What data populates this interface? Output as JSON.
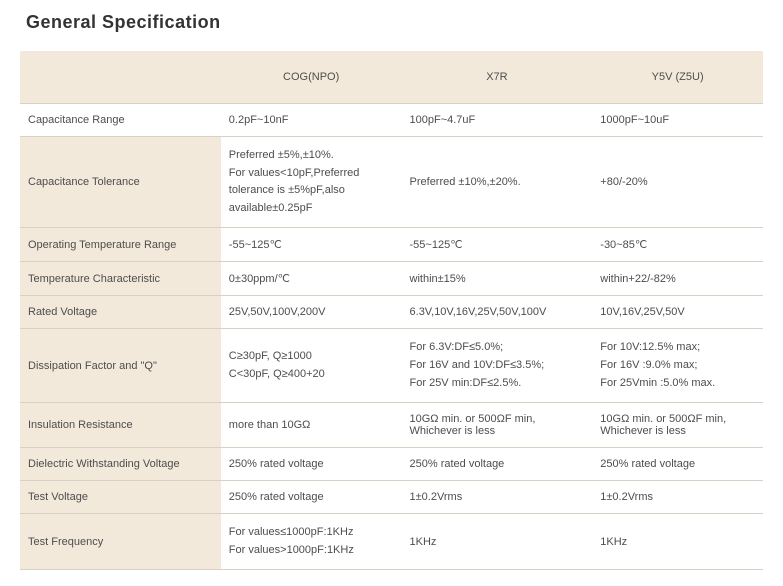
{
  "title": "General Specification",
  "columns": [
    "",
    "COG(NPO)",
    "X7R",
    "Y5V (Z5U)"
  ],
  "rows": [
    {
      "head": "Capacitance Range",
      "white": true,
      "cells": [
        "0.2pF~10nF",
        "100pF~4.7uF",
        "1000pF~10uF"
      ]
    },
    {
      "head": "Capacitance Tolerance",
      "cells": [
        "Preferred ±5%,±10%.\nFor values<10pF,Preferred tolerance is ±5%pF,also\navailable±0.25pF",
        "Preferred ±10%,±20%.",
        "+80/-20%"
      ]
    },
    {
      "head": "Operating Temperature Range",
      "cells": [
        "-55~125℃",
        "-55~125℃",
        "-30~85℃"
      ]
    },
    {
      "head": "Temperature Characteristic",
      "cells": [
        "0±30ppm/℃",
        "within±15%",
        "within+22/-82%"
      ]
    },
    {
      "head": "Rated Voltage",
      "cells": [
        "25V,50V,100V,200V",
        "6.3V,10V,16V,25V,50V,100V",
        "10V,16V,25V,50V"
      ]
    },
    {
      "head": "Dissipation Factor and \"Q\"",
      "cells": [
        "C≥30pF, Q≥1000\nC<30pF, Q≥400+20",
        "For 6.3V:DF≤5.0%;\nFor 16V and 10V:DF≤3.5%;\nFor 25V min:DF≤2.5%.",
        "For 10V:12.5% max;\nFor 16V :9.0% max;\nFor 25Vmin :5.0% max."
      ]
    },
    {
      "head": "Insulation Resistance",
      "cells": [
        "more than 10GΩ",
        "10GΩ min. or 500ΩF min, Whichever is less",
        "10GΩ min. or 500ΩF min, Whichever is less"
      ]
    },
    {
      "head": "Dielectric Withstanding Voltage",
      "cells": [
        "250% rated voltage",
        "250% rated voltage",
        "250% rated voltage"
      ]
    },
    {
      "head": "Test Voltage",
      "cells": [
        "250% rated voltage",
        "1±0.2Vrms",
        "1±0.2Vrms"
      ]
    },
    {
      "head": "Test Frequency",
      "cells": [
        "For values≤1000pF:1KHz\nFor values>1000pF:1KHz",
        "1KHz",
        "1KHz"
      ]
    }
  ],
  "colors": {
    "header_bg": "#f2e9db",
    "border": "#d8d0c4",
    "text": "#4d4d4d",
    "title": "#333333",
    "page_bg": "#ffffff"
  }
}
